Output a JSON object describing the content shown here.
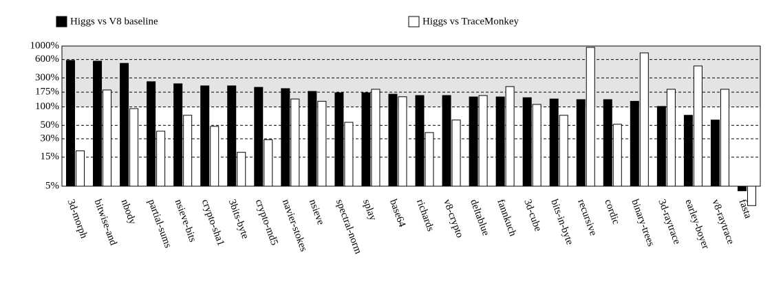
{
  "chart_data": {
    "type": "bar",
    "log_scale": true,
    "grid": true,
    "categories": [
      "3d-morph",
      "bitwise-and",
      "nbody",
      "partial-sums",
      "nsieve-bits",
      "crypto-sha1",
      "3bits-byte",
      "crypto-md5",
      "navier-stokes",
      "nsieve",
      "spectral-norm",
      "splay",
      "base64",
      "richards",
      "v8-crypto",
      "deltablue",
      "fannkuch",
      "3d-cube",
      "bits-in-byte",
      "recursive",
      "cordic",
      "binary-trees",
      "3d-raytrace",
      "earley-boyer",
      "v8-raytrace",
      "fasta"
    ],
    "series": [
      {
        "name": "Higgs vs V8 baseline",
        "color": "#000000",
        "values": [
          580,
          565,
          520,
          260,
          240,
          222,
          222,
          210,
          200,
          180,
          171,
          171,
          162,
          154,
          154,
          146,
          146,
          142,
          135,
          132,
          132,
          124,
          102,
          73,
          61,
          4.2
        ]
      },
      {
        "name": "Higgs vs TraceMonkey",
        "color": "#ffffff",
        "values": [
          19,
          190,
          94,
          40,
          73,
          48,
          18,
          29,
          135,
          124,
          56,
          195,
          147,
          38,
          61,
          154,
          216,
          110,
          73,
          950,
          52,
          772,
          195,
          471,
          195,
          2.4
        ]
      }
    ],
    "ylim": [
      5,
      1000
    ],
    "yticks": [
      {
        "value": 5,
        "label": "5%"
      },
      {
        "value": 15,
        "label": "15%"
      },
      {
        "value": 30,
        "label": "30%"
      },
      {
        "value": 50,
        "label": "50%"
      },
      {
        "value": 100,
        "label": "100%"
      },
      {
        "value": 175,
        "label": "175%"
      },
      {
        "value": 300,
        "label": "300%"
      },
      {
        "value": 600,
        "label": "600%"
      },
      {
        "value": 1000,
        "label": "1000%"
      }
    ]
  }
}
